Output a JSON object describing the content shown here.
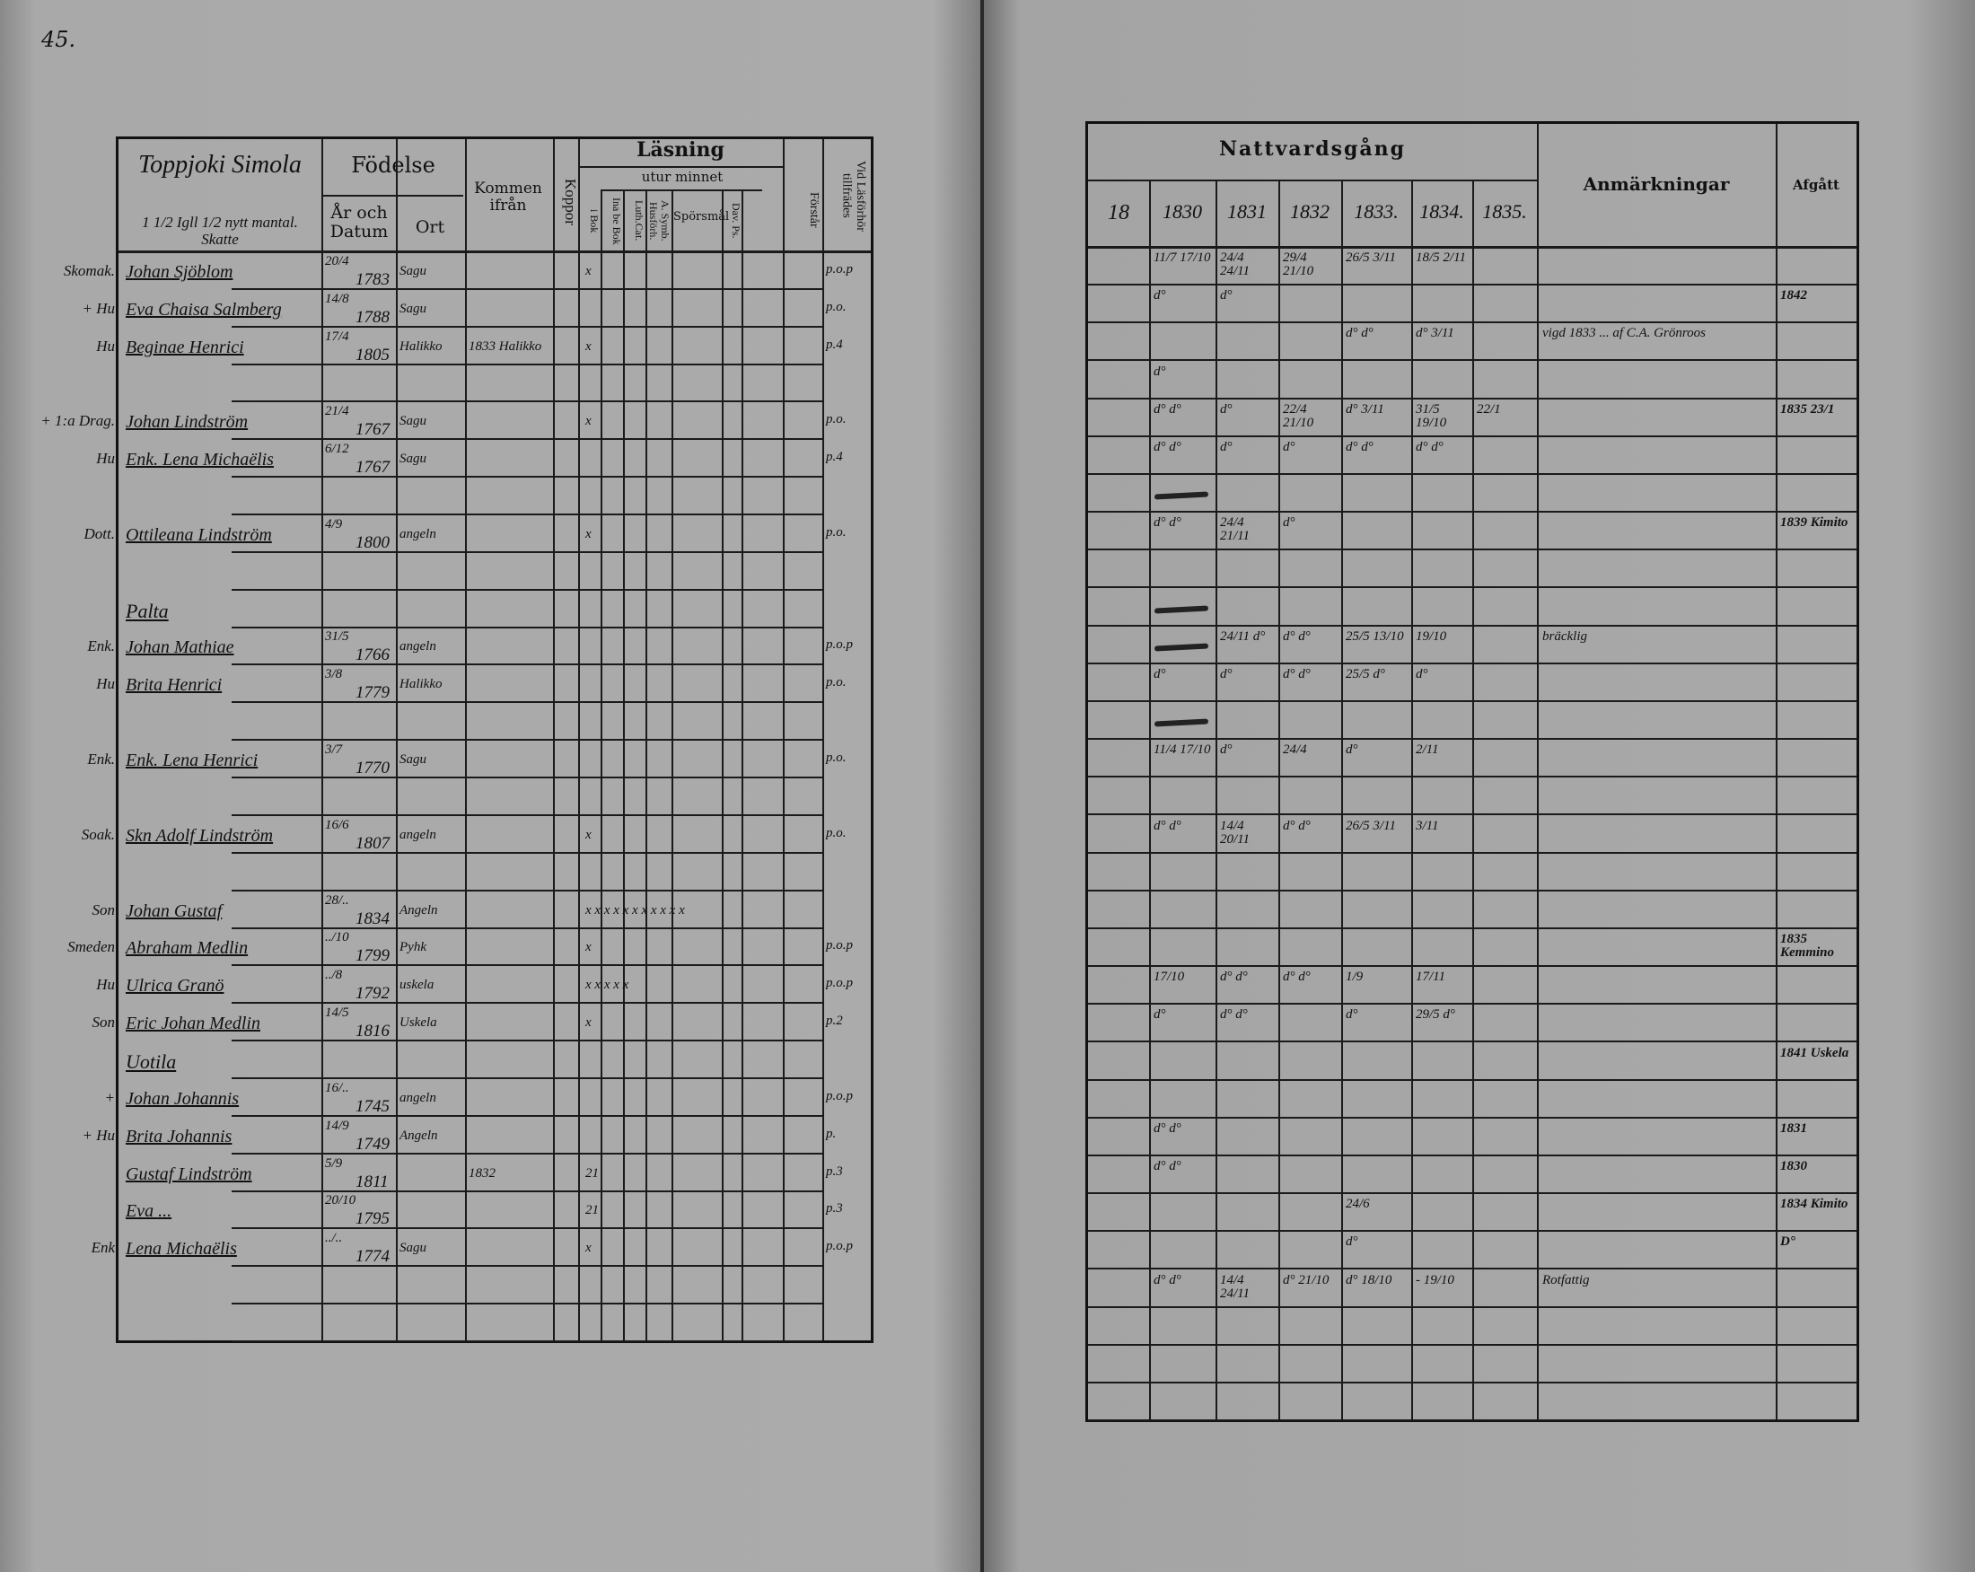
{
  "page_number": "45.",
  "left": {
    "header": {
      "place_title": "Toppjoki Simola",
      "place_subtitle": "1 1/2 Igll 1/2 nytt mantal. Skatte",
      "birth": "Födelse",
      "birth_date": "År och Datum",
      "birth_place": "Ort",
      "came_from": "Kommen ifrån",
      "smallpox": "Koppor",
      "reading": "Läsning",
      "from_memory": "utur minnet",
      "in_book": "i Bok",
      "in_be_book": "Ina be Bok",
      "luth_cat": "Luth.Cat.",
      "symb": "A. Symb. Husförh.",
      "questions": "Spörsmål",
      "dav_ps": "Dav. Ps.",
      "understands": "Förstår",
      "catechetical": "Vid Läsförhör tillfrädes"
    },
    "rows": [
      {
        "role": "Skomak.",
        "name": "Johan Sjöblom",
        "date": "20/4",
        "year": "1783",
        "place": "Sagu",
        "from": "",
        "marks": "x",
        "notes": "p.o.p"
      },
      {
        "role": "+ Hu",
        "name": "Eva Chaisa Salmberg",
        "date": "14/8",
        "year": "1788",
        "place": "Sagu",
        "from": "",
        "marks": "",
        "notes": "p.o."
      },
      {
        "role": "Hu",
        "name": "Beginae Henrici",
        "date": "17/4",
        "year": "1805",
        "place": "Halikko",
        "from": "1833 Halikko",
        "marks": "x",
        "notes": "p.4"
      },
      {
        "role": "",
        "name": "",
        "date": "",
        "year": "",
        "place": "",
        "from": "",
        "marks": "",
        "notes": ""
      },
      {
        "role": "+ 1:a Drag.",
        "name": "Johan Lindström",
        "date": "21/4",
        "year": "1767",
        "place": "Sagu",
        "from": "",
        "marks": "x",
        "notes": "p.o."
      },
      {
        "role": "Hu",
        "name": "Enk. Lena Michaëlis",
        "date": "6/12",
        "year": "1767",
        "place": "Sagu",
        "from": "",
        "marks": "",
        "notes": "p.4"
      },
      {
        "role": "",
        "name": "",
        "date": "",
        "year": "",
        "place": "",
        "from": "",
        "marks": "",
        "notes": ""
      },
      {
        "role": "Dott.",
        "name": "Ottileana Lindström",
        "date": "4/9",
        "year": "1800",
        "place": "angeln",
        "from": "",
        "marks": "x",
        "notes": "p.o."
      },
      {
        "role": "",
        "name": "",
        "date": "",
        "year": "",
        "place": "",
        "from": "",
        "marks": "",
        "notes": ""
      },
      {
        "role": "",
        "name": "Palta",
        "date": "",
        "year": "",
        "place": "",
        "from": "",
        "marks": "",
        "notes": ""
      },
      {
        "role": "Enk.",
        "name": "Johan Mathiae",
        "date": "31/5",
        "year": "1766",
        "place": "angeln",
        "from": "",
        "marks": "",
        "notes": "p.o.p"
      },
      {
        "role": "Hu",
        "name": "Brita Henrici",
        "date": "3/8",
        "year": "1779",
        "place": "Halikko",
        "from": "",
        "marks": "",
        "notes": "p.o."
      },
      {
        "role": "",
        "name": "",
        "date": "",
        "year": "",
        "place": "",
        "from": "",
        "marks": "",
        "notes": ""
      },
      {
        "role": "Enk.",
        "name": "Enk. Lena Henrici",
        "date": "3/7",
        "year": "1770",
        "place": "Sagu",
        "from": "",
        "marks": "",
        "notes": "p.o."
      },
      {
        "role": "",
        "name": "",
        "date": "",
        "year": "",
        "place": "",
        "from": "",
        "marks": "",
        "notes": ""
      },
      {
        "role": "Soak.",
        "name": "Skn Adolf Lindström",
        "date": "16/6",
        "year": "1807",
        "place": "angeln",
        "from": "",
        "marks": "x",
        "notes": "p.o."
      },
      {
        "role": "",
        "name": "",
        "date": "",
        "year": "",
        "place": "",
        "from": "",
        "marks": "",
        "notes": ""
      },
      {
        "role": "Son",
        "name": "Johan Gustaf",
        "date": "28/..",
        "year": "1834",
        "place": "Angeln",
        "from": "",
        "marks": "x x x x x x x x x x x",
        "notes": ""
      },
      {
        "role": "Smeden",
        "name": "Abraham Medlin",
        "date": "../10",
        "year": "1799",
        "place": "Pyhk",
        "from": "",
        "marks": "x",
        "notes": "p.o.p"
      },
      {
        "role": "Hu",
        "name": "Ulrica Granö",
        "date": "../8",
        "year": "1792",
        "place": "uskela",
        "from": "",
        "marks": "x x x x x",
        "notes": "p.o.p"
      },
      {
        "role": "Son",
        "name": "Eric Johan Medlin",
        "date": "14/5",
        "year": "1816",
        "place": "Uskela",
        "from": "",
        "marks": "x",
        "notes": "p.2"
      },
      {
        "role": "",
        "name": "Uotila",
        "date": "",
        "year": "",
        "place": "",
        "from": "",
        "marks": "",
        "notes": ""
      },
      {
        "role": "+",
        "name": "Johan Johannis",
        "date": "16/..",
        "year": "1745",
        "place": "angeln",
        "from": "",
        "marks": "",
        "notes": "p.o.p"
      },
      {
        "role": "+ Hu",
        "name": "Brita Johannis",
        "date": "14/9",
        "year": "1749",
        "place": "Angeln",
        "from": "",
        "marks": "",
        "notes": "p."
      },
      {
        "role": "",
        "name": "Gustaf Lindström",
        "date": "5/9",
        "year": "1811",
        "place": "",
        "from": "1832",
        "marks": "21",
        "notes": "p.3"
      },
      {
        "role": "",
        "name": "Eva ...",
        "date": "20/10",
        "year": "1795",
        "place": "",
        "from": "",
        "marks": "21",
        "notes": "p.3"
      },
      {
        "role": "Enk",
        "name": "Lena Michaëlis",
        "date": "../..",
        "year": "1774",
        "place": "Sagu",
        "from": "",
        "marks": "x",
        "notes": "p.o.p"
      },
      {
        "role": "",
        "name": "",
        "date": "",
        "year": "",
        "place": "",
        "from": "",
        "marks": "",
        "notes": ""
      },
      {
        "role": "",
        "name": "",
        "date": "",
        "year": "",
        "place": "",
        "from": "",
        "marks": "",
        "notes": ""
      }
    ]
  },
  "right": {
    "header": {
      "communion": "Nattvardsgång",
      "century": "18",
      "years": [
        "1830",
        "1831",
        "1832",
        "1833.",
        "1834.",
        "1835."
      ],
      "remarks": "Anmärkningar",
      "departed": "Afgått"
    },
    "rows": [
      {
        "y": [
          "11/7 17/10",
          "24/4 24/11",
          "29/4 21/10",
          "26/5 3/11",
          "18/5 2/11",
          ""
        ],
        "remark": "",
        "departed": "",
        "struck": false
      },
      {
        "y": [
          "d°",
          "d°",
          "",
          "",
          "",
          ""
        ],
        "remark": "",
        "departed": "1842",
        "struck": false
      },
      {
        "y": [
          "",
          "",
          "",
          "d° d°",
          "d° 3/11",
          ""
        ],
        "remark": "vigd 1833 ... af C.A. Grönroos",
        "departed": "",
        "struck": false
      },
      {
        "y": [
          "d°",
          "",
          "",
          "",
          "",
          ""
        ],
        "remark": "",
        "departed": "",
        "struck": false
      },
      {
        "y": [
          "d° d°",
          "d°",
          "22/4 21/10",
          "d° 3/11",
          "31/5 19/10",
          "22/1"
        ],
        "remark": "",
        "departed": "1835 23/1",
        "struck": false
      },
      {
        "y": [
          "d° d°",
          "d°",
          "d°",
          "d° d°",
          "d° d°",
          ""
        ],
        "remark": "",
        "departed": "",
        "struck": false
      },
      {
        "y": [
          "",
          "",
          "",
          "",
          "",
          ""
        ],
        "remark": "",
        "departed": "",
        "struck": true
      },
      {
        "y": [
          "d° d°",
          "24/4 21/11",
          "d°",
          "",
          "",
          ""
        ],
        "remark": "",
        "departed": "1839 Kimito",
        "struck": false
      },
      {
        "y": [
          "",
          "",
          "",
          "",
          "",
          ""
        ],
        "remark": "",
        "departed": "",
        "struck": false
      },
      {
        "y": [
          "",
          "",
          "",
          "",
          "",
          ""
        ],
        "remark": "",
        "departed": "",
        "struck": true
      },
      {
        "y": [
          "",
          "24/11 d°",
          "d° d°",
          "25/5 13/10",
          "19/10",
          ""
        ],
        "remark": "bräcklig",
        "departed": "",
        "struck": true
      },
      {
        "y": [
          "d°",
          "d°",
          "d° d°",
          "25/5 d°",
          "d°",
          ""
        ],
        "remark": "",
        "departed": "",
        "struck": false
      },
      {
        "y": [
          "",
          "",
          "",
          "",
          "",
          ""
        ],
        "remark": "",
        "departed": "",
        "struck": true
      },
      {
        "y": [
          "11/4 17/10",
          "d°",
          "24/4",
          "d°",
          "2/11",
          ""
        ],
        "remark": "",
        "departed": "",
        "struck": false
      },
      {
        "y": [
          "",
          "",
          "",
          "",
          "",
          ""
        ],
        "remark": "",
        "departed": "",
        "struck": false
      },
      {
        "y": [
          "d° d°",
          "14/4 20/11",
          "d° d°",
          "26/5 3/11",
          "3/11",
          ""
        ],
        "remark": "",
        "departed": "",
        "struck": false
      },
      {
        "y": [
          "",
          "",
          "",
          "",
          "",
          ""
        ],
        "remark": "",
        "departed": "",
        "struck": false
      },
      {
        "y": [
          "",
          "",
          "",
          "",
          "",
          ""
        ],
        "remark": "",
        "departed": "",
        "struck": false
      },
      {
        "y": [
          "",
          "",
          "",
          "",
          "",
          ""
        ],
        "remark": "",
        "departed": "1835 Kemmino",
        "struck": false
      },
      {
        "y": [
          "17/10",
          "d° d°",
          "d° d°",
          "1/9",
          "17/11",
          ""
        ],
        "remark": "",
        "departed": "",
        "struck": false
      },
      {
        "y": [
          "d°",
          "d° d°",
          "",
          "d°",
          "29/5 d°",
          ""
        ],
        "remark": "",
        "departed": "",
        "struck": false
      },
      {
        "y": [
          "",
          "",
          "",
          "",
          "",
          ""
        ],
        "remark": "",
        "departed": "1841 Uskela",
        "struck": false
      },
      {
        "y": [
          "",
          "",
          "",
          "",
          "",
          ""
        ],
        "remark": "",
        "departed": "",
        "struck": false
      },
      {
        "y": [
          "d° d°",
          "",
          "",
          "",
          "",
          ""
        ],
        "remark": "",
        "departed": "1831",
        "struck": false
      },
      {
        "y": [
          "d° d°",
          "",
          "",
          "",
          "",
          ""
        ],
        "remark": "",
        "departed": "1830",
        "struck": false
      },
      {
        "y": [
          "",
          "",
          "",
          "24/6",
          "",
          ""
        ],
        "remark": "",
        "departed": "1834 Kimito",
        "struck": false
      },
      {
        "y": [
          "",
          "",
          "",
          "d°",
          "",
          ""
        ],
        "remark": "",
        "departed": "D°",
        "struck": false
      },
      {
        "y": [
          "d° d°",
          "14/4 24/11",
          "d° 21/10",
          "d° 18/10",
          "- 19/10",
          ""
        ],
        "remark": "Rotfattig",
        "departed": "",
        "struck": false
      },
      {
        "y": [
          "",
          "",
          "",
          "",
          "",
          ""
        ],
        "remark": "",
        "departed": "",
        "struck": false
      },
      {
        "y": [
          "",
          "",
          "",
          "",
          "",
          ""
        ],
        "remark": "",
        "departed": "",
        "struck": false
      },
      {
        "y": [
          "",
          "",
          "",
          "",
          "",
          ""
        ],
        "remark": "",
        "departed": "",
        "struck": false
      }
    ]
  }
}
